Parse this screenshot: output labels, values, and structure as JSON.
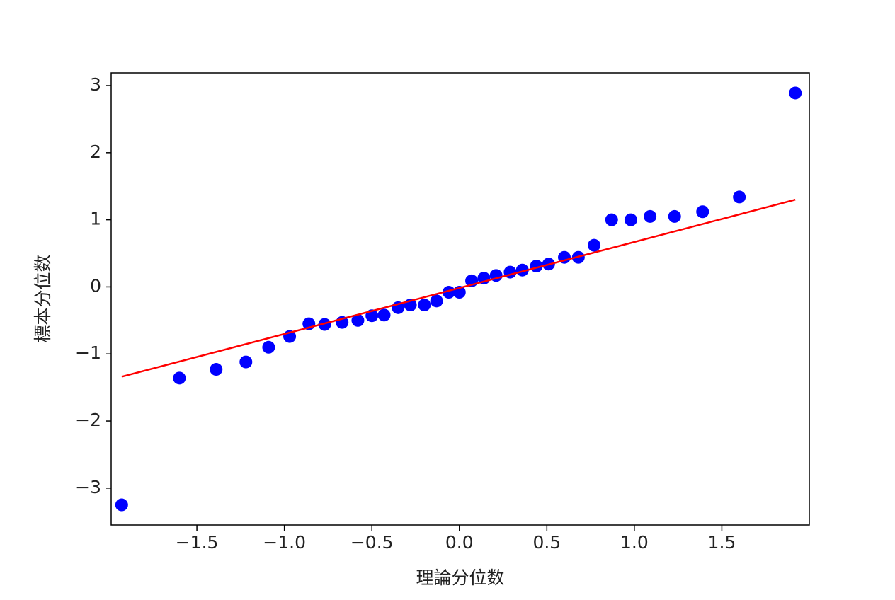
{
  "chart_data": {
    "type": "scatter",
    "x_label": "理論分位数",
    "y_label": "標本分位数",
    "xlim": [
      -1.99,
      2.0
    ],
    "ylim": [
      -3.55,
      3.19
    ],
    "xticks": [
      {
        "value": -1.5,
        "label": "−1.5"
      },
      {
        "value": -1.0,
        "label": "−1.0"
      },
      {
        "value": -0.5,
        "label": "−0.5"
      },
      {
        "value": 0.0,
        "label": "0.0"
      },
      {
        "value": 0.5,
        "label": "0.5"
      },
      {
        "value": 1.0,
        "label": "1.0"
      },
      {
        "value": 1.5,
        "label": "1.5"
      }
    ],
    "yticks": [
      {
        "value": -3,
        "label": "−3"
      },
      {
        "value": -2,
        "label": "−2"
      },
      {
        "value": -1,
        "label": "−1"
      },
      0,
      1,
      2,
      3
    ],
    "grid": false,
    "series": [
      {
        "type": "scatter",
        "color": "#0000ff",
        "x": [
          -1.93,
          -1.6,
          -1.39,
          -1.22,
          -1.09,
          -0.97,
          -0.86,
          -0.77,
          -0.67,
          -0.58,
          -0.5,
          -0.43,
          -0.35,
          -0.28,
          -0.2,
          -0.13,
          -0.06,
          0.0,
          0.07,
          0.14,
          0.21,
          0.29,
          0.36,
          0.44,
          0.51,
          0.6,
          0.68,
          0.77,
          0.87,
          0.98,
          1.09,
          1.23,
          1.39,
          1.6,
          1.92
        ],
        "values": [
          -3.25,
          -1.36,
          -1.23,
          -1.12,
          -0.9,
          -0.74,
          -0.55,
          -0.56,
          -0.53,
          -0.5,
          -0.43,
          -0.42,
          -0.31,
          -0.27,
          -0.27,
          -0.21,
          -0.08,
          -0.08,
          0.09,
          0.13,
          0.17,
          0.22,
          0.25,
          0.31,
          0.34,
          0.44,
          0.44,
          0.62,
          1.0,
          1.0,
          1.05,
          1.05,
          1.12,
          1.34,
          2.89
        ]
      },
      {
        "type": "line",
        "color": "#ff0000",
        "x": [
          -1.93,
          1.92
        ],
        "values": [
          -1.34,
          1.3
        ]
      }
    ]
  }
}
